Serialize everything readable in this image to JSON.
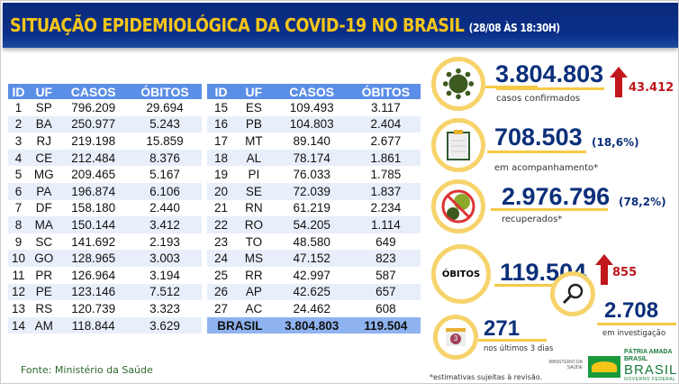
{
  "header": {
    "title": "SITUAÇÃO EPIDEMIOLÓGICA DA COVID-19 NO BRASIL",
    "date": "(28/08 ÀS 18:30H)"
  },
  "table": {
    "columns": [
      "ID",
      "UF",
      "CASOS",
      "ÓBITOS"
    ],
    "left": [
      [
        "1",
        "SP",
        "796.209",
        "29.694"
      ],
      [
        "2",
        "BA",
        "250.977",
        "5.243"
      ],
      [
        "3",
        "RJ",
        "219.198",
        "15.859"
      ],
      [
        "4",
        "CE",
        "212.484",
        "8.376"
      ],
      [
        "5",
        "MG",
        "209.465",
        "5.167"
      ],
      [
        "6",
        "PA",
        "196.874",
        "6.106"
      ],
      [
        "7",
        "DF",
        "158.180",
        "2.440"
      ],
      [
        "8",
        "MA",
        "150.144",
        "3.412"
      ],
      [
        "9",
        "SC",
        "141.692",
        "2.193"
      ],
      [
        "10",
        "GO",
        "128.965",
        "3.003"
      ],
      [
        "11",
        "PR",
        "126.964",
        "3.194"
      ],
      [
        "12",
        "PE",
        "123.146",
        "7.512"
      ],
      [
        "13",
        "RS",
        "120.739",
        "3.323"
      ],
      [
        "14",
        "AM",
        "118.844",
        "3.629"
      ]
    ],
    "right": [
      [
        "15",
        "ES",
        "109.493",
        "3.117"
      ],
      [
        "16",
        "PB",
        "104.803",
        "2.404"
      ],
      [
        "17",
        "MT",
        "89.140",
        "2.677"
      ],
      [
        "18",
        "AL",
        "78.174",
        "1.861"
      ],
      [
        "19",
        "PI",
        "76.033",
        "1.785"
      ],
      [
        "20",
        "SE",
        "72.039",
        "1.837"
      ],
      [
        "21",
        "RN",
        "61.219",
        "2.234"
      ],
      [
        "22",
        "RO",
        "54.205",
        "1.114"
      ],
      [
        "23",
        "TO",
        "48.580",
        "649"
      ],
      [
        "24",
        "MS",
        "47.152",
        "823"
      ],
      [
        "25",
        "RR",
        "42.997",
        "587"
      ],
      [
        "26",
        "AP",
        "42.625",
        "657"
      ],
      [
        "27",
        "AC",
        "24.462",
        "608"
      ]
    ],
    "total": {
      "label": "BRASIL",
      "casos": "3.804.803",
      "obitos": "119.504"
    }
  },
  "source": "Fonte: Ministério da Saúde",
  "stats": {
    "confirmed": {
      "value": "3.804.803",
      "label": "casos confirmados",
      "increase": "43.412",
      "icon": "virus-icon"
    },
    "monitoring": {
      "value": "708.503",
      "pct": "(18,6%)",
      "label": "em acompanhamento*",
      "icon": "clipboard-icon"
    },
    "recovered": {
      "value": "2.976.796",
      "pct": "(78,2%)",
      "label": "recuperados*",
      "icon": "no-virus-icon"
    },
    "deaths": {
      "badge": "ÓBITOS",
      "value": "119.504",
      "increase": "855"
    },
    "recent": {
      "value": "271",
      "label": "nos últimos 3 dias",
      "calendar": "3",
      "icon": "calendar-icon"
    },
    "investigation": {
      "value": "2.708",
      "label": "em investigação",
      "icon": "magnifier-icon"
    }
  },
  "footnote": "*estimativas sujeitas à revisão.",
  "logos": {
    "ministry": "MINISTÉRIO DA SAÚDE",
    "gov": "PÁTRIA AMADA BRASIL",
    "gov_sub": "GOVERNO FEDERAL"
  },
  "colors": {
    "navy": "#0b2f7a",
    "yellow": "#f5c518",
    "red": "#c0161c",
    "table_header": "#5b8ee6"
  }
}
